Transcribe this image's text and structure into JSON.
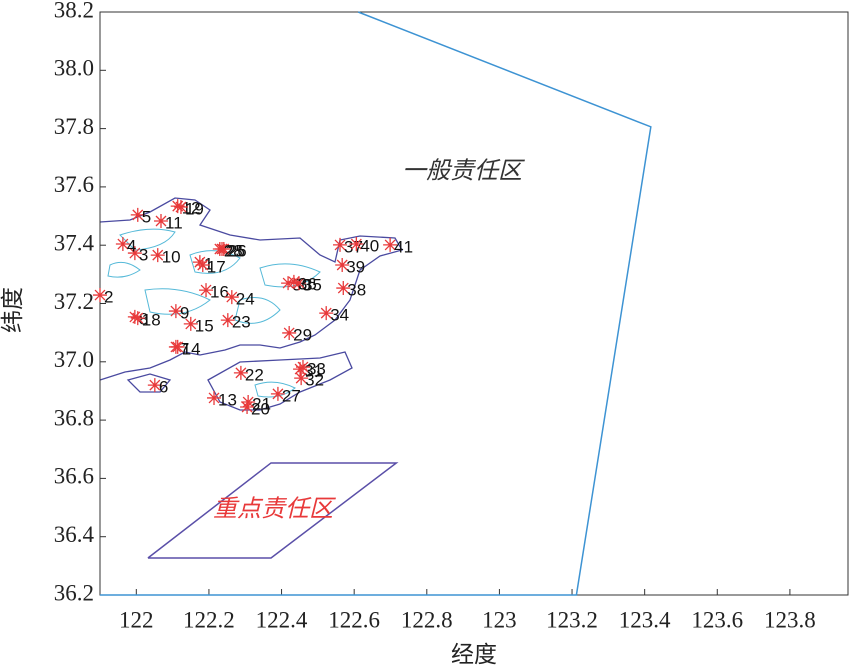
{
  "chart_data": {
    "type": "scatter",
    "xlabel": "经度",
    "ylabel": "纬度",
    "xlim": [
      121.9,
      123.96
    ],
    "ylim": [
      36.2,
      38.2
    ],
    "xticks": [
      122,
      122.2,
      122.4,
      122.6,
      122.8,
      123,
      123.2,
      123.4,
      123.6,
      123.8
    ],
    "yticks": [
      {
        "value": 36.2,
        "label": "36.2"
      },
      {
        "value": 36.4,
        "label": "36.4"
      },
      {
        "value": 36.6,
        "label": "36.6"
      },
      {
        "value": 36.8,
        "label": "36.8"
      },
      {
        "value": 37,
        "label": "37.0"
      },
      {
        "value": 37.2,
        "label": "37.2"
      },
      {
        "value": 37.4,
        "label": "37.4"
      },
      {
        "value": 37.6,
        "label": "37.6"
      },
      {
        "value": 37.8,
        "label": "37.8"
      },
      {
        "value": 38,
        "label": "38.0"
      },
      {
        "value": 38.2,
        "label": "38.2"
      }
    ],
    "color": "#e8393a",
    "point_labels": [
      "1",
      "2",
      "3",
      "4",
      "5",
      "6",
      "7",
      "8",
      "9",
      "10",
      "11",
      "12",
      "13",
      "14",
      "15",
      "16",
      "17",
      "18",
      "19",
      "20",
      "21",
      "22",
      "23",
      "24",
      "25",
      "26",
      "27",
      "28",
      "29",
      "30",
      "31",
      "32",
      "33",
      "34",
      "35",
      "36",
      "37",
      "38",
      "39",
      "40",
      "41"
    ],
    "x": [
      122.175,
      121.9,
      121.996,
      121.963,
      122.004,
      122.051,
      122.109,
      121.996,
      122.109,
      122.059,
      122.068,
      122.114,
      122.214,
      122.114,
      122.15,
      122.192,
      122.183,
      122.004,
      122.123,
      122.305,
      122.308,
      122.288,
      122.252,
      122.263,
      122.236,
      122.241,
      122.39,
      122.23,
      122.421,
      122.418,
      122.451,
      122.454,
      122.459,
      122.523,
      122.448,
      122.434,
      122.561,
      122.57,
      122.567,
      122.606,
      122.699
    ],
    "y": [
      37.342,
      37.229,
      37.373,
      37.404,
      37.504,
      36.92,
      37.051,
      37.154,
      37.174,
      37.366,
      37.483,
      37.534,
      36.876,
      37.051,
      37.13,
      37.246,
      37.332,
      37.15,
      37.531,
      36.845,
      36.862,
      36.962,
      37.143,
      37.222,
      37.387,
      37.387,
      36.89,
      37.387,
      37.099,
      37.27,
      36.975,
      36.944,
      36.982,
      37.167,
      37.27,
      37.274,
      37.401,
      37.253,
      37.332,
      37.404,
      37.401
    ],
    "boundaries": [
      {
        "color": "#3d93d3",
        "x": [
          122.611,
          123.417,
          123.212,
          121.9
        ],
        "y": [
          38.2,
          37.806,
          36.2,
          36.2
        ]
      },
      {
        "color": "#5a4fa8",
        "x": [
          122.032,
          122.371,
          122.716,
          122.371,
          122.032
        ],
        "y": [
          36.327,
          36.653,
          36.653,
          36.327,
          36.327
        ]
      }
    ],
    "annotations": [
      {
        "text": "一般责任区",
        "color": "#333333"
      },
      {
        "text": "重点责任区",
        "color": "#e8393a"
      }
    ]
  }
}
